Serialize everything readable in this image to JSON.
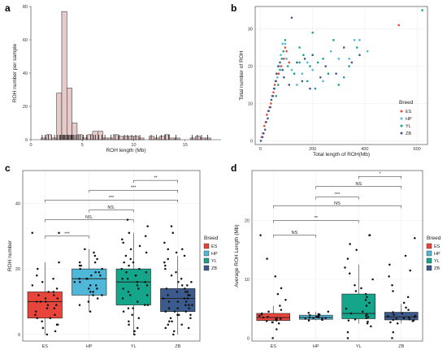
{
  "panel_labels": {
    "a": "a",
    "b": "b",
    "c": "c",
    "d": "d"
  },
  "colors": {
    "histogram_fill": "#e6c9c9",
    "ES": "#e8453a",
    "HP": "#4fb8d8",
    "YL": "#14a58a",
    "ZB": "#3c5a8c"
  },
  "chart_data": [
    {
      "id": "a",
      "type": "bar",
      "subtype": "histogram_with_rug",
      "xlabel": "ROH length (Mb)",
      "ylabel": "ROH number per sample",
      "xlim": [
        0,
        18.5
      ],
      "ylim": [
        0,
        80
      ],
      "xticks": [
        "0",
        "5",
        "10",
        "15"
      ],
      "xtick_values": [
        0,
        5,
        10,
        15
      ],
      "yticks": [
        "0",
        "20",
        "40",
        "60",
        "80"
      ],
      "ytick_values": [
        0,
        20,
        40,
        60,
        80
      ],
      "bin_width": 0.5,
      "bins": [
        {
          "x0": 1.0,
          "v": 1
        },
        {
          "x0": 1.5,
          "v": 3
        },
        {
          "x0": 2.0,
          "v": 1
        },
        {
          "x0": 2.5,
          "v": 28
        },
        {
          "x0": 3.0,
          "v": 77
        },
        {
          "x0": 3.5,
          "v": 31
        },
        {
          "x0": 4.0,
          "v": 10
        },
        {
          "x0": 4.5,
          "v": 3
        },
        {
          "x0": 5.0,
          "v": 1
        },
        {
          "x0": 5.5,
          "v": 3
        },
        {
          "x0": 6.0,
          "v": 5
        },
        {
          "x0": 6.5,
          "v": 5
        },
        {
          "x0": 7.0,
          "v": 1
        },
        {
          "x0": 7.5,
          "v": 1
        },
        {
          "x0": 8.0,
          "v": 3
        },
        {
          "x0": 8.5,
          "v": 2
        },
        {
          "x0": 9.0,
          "v": 2
        },
        {
          "x0": 9.5,
          "v": 2
        },
        {
          "x0": 10.0,
          "v": 2
        },
        {
          "x0": 10.5,
          "v": 1
        },
        {
          "x0": 11.5,
          "v": 2
        },
        {
          "x0": 12.0,
          "v": 1
        },
        {
          "x0": 12.5,
          "v": 2
        },
        {
          "x0": 13.0,
          "v": 3
        },
        {
          "x0": 13.5,
          "v": 1
        },
        {
          "x0": 14.0,
          "v": 1
        },
        {
          "x0": 15.5,
          "v": 1
        },
        {
          "x0": 16.0,
          "v": 2
        },
        {
          "x0": 16.5,
          "v": 1
        },
        {
          "x0": 17.0,
          "v": 1
        }
      ],
      "rug": [
        1.1,
        1.4,
        1.7,
        2.0,
        2.3,
        2.6,
        2.8,
        2.9,
        3.0,
        3.1,
        3.2,
        3.3,
        3.4,
        3.5,
        3.6,
        3.7,
        3.8,
        3.9,
        4.0,
        4.1,
        4.2,
        4.4,
        4.6,
        4.8,
        5.1,
        5.4,
        5.8,
        6.1,
        6.3,
        6.6,
        6.9,
        7.2,
        7.8,
        8.2,
        8.6,
        9.1,
        9.4,
        9.8,
        10.2,
        10.6,
        11.7,
        12.2,
        12.7,
        13.1,
        13.4,
        14.1,
        15.7,
        16.2,
        16.6,
        17.2
      ]
    },
    {
      "id": "b",
      "type": "scatter",
      "xlabel": "Total length of ROH(Mb)",
      "ylabel": "Total number of ROH",
      "xlim": [
        -20,
        640
      ],
      "ylim": [
        -1,
        36
      ],
      "xticks": [
        "0",
        "200",
        "400",
        "600"
      ],
      "xtick_values": [
        0,
        200,
        400,
        600
      ],
      "yticks": [
        "0",
        "10",
        "20",
        "30"
      ],
      "ytick_values": [
        0,
        10,
        20,
        30
      ],
      "legend": {
        "title": "Breed",
        "position": "right",
        "entries": [
          "ES",
          "HP",
          "YL",
          "ZB"
        ]
      },
      "series": [
        {
          "name": "ES",
          "points": [
            [
              5,
              1
            ],
            [
              10,
              2
            ],
            [
              15,
              4
            ],
            [
              20,
              5
            ],
            [
              25,
              7
            ],
            [
              30,
              8
            ],
            [
              35,
              9
            ],
            [
              40,
              10
            ],
            [
              45,
              12
            ],
            [
              50,
              13
            ],
            [
              55,
              15
            ],
            [
              60,
              16
            ],
            [
              70,
              18
            ],
            [
              80,
              20
            ],
            [
              90,
              22
            ],
            [
              95,
              25
            ],
            [
              530,
              31
            ],
            [
              100,
              24
            ],
            [
              110,
              21
            ]
          ]
        },
        {
          "name": "HP",
          "points": [
            [
              55,
              14
            ],
            [
              65,
              17
            ],
            [
              72,
              20
            ],
            [
              78,
              23
            ],
            [
              85,
              26
            ],
            [
              95,
              26
            ],
            [
              100,
              22
            ],
            [
              120,
              19
            ],
            [
              140,
              15
            ],
            [
              160,
              18
            ],
            [
              180,
              21
            ],
            [
              200,
              19
            ],
            [
              240,
              16
            ],
            [
              270,
              24
            ],
            [
              300,
              22
            ],
            [
              340,
              22
            ],
            [
              360,
              27
            ],
            [
              380,
              27
            ],
            [
              410,
              24
            ]
          ]
        },
        {
          "name": "YL",
          "points": [
            [
              60,
              12
            ],
            [
              68,
              15
            ],
            [
              75,
              19
            ],
            [
              82,
              22
            ],
            [
              88,
              24
            ],
            [
              95,
              27
            ],
            [
              105,
              20
            ],
            [
              130,
              18
            ],
            [
              150,
              21
            ],
            [
              165,
              23
            ],
            [
              190,
              20
            ],
            [
              200,
              29
            ],
            [
              210,
              14
            ],
            [
              220,
              21
            ],
            [
              240,
              22
            ],
            [
              260,
              18
            ],
            [
              280,
              27
            ],
            [
              300,
              15
            ],
            [
              320,
              17
            ],
            [
              340,
              20
            ],
            [
              370,
              25
            ],
            [
              620,
              35
            ],
            [
              150,
              25
            ],
            [
              180,
              16
            ]
          ]
        },
        {
          "name": "ZB",
          "points": [
            [
              2,
              0
            ],
            [
              8,
              1
            ],
            [
              12,
              2
            ],
            [
              18,
              3
            ],
            [
              22,
              5
            ],
            [
              28,
              6
            ],
            [
              32,
              8
            ],
            [
              38,
              9
            ],
            [
              42,
              11
            ],
            [
              48,
              12
            ],
            [
              52,
              14
            ],
            [
              58,
              16
            ],
            [
              62,
              18
            ],
            [
              68,
              20
            ],
            [
              75,
              21
            ],
            [
              85,
              19
            ],
            [
              90,
              17
            ],
            [
              110,
              15
            ],
            [
              120,
              33
            ],
            [
              140,
              21
            ],
            [
              160,
              16
            ],
            [
              170,
              22
            ],
            [
              190,
              14
            ],
            [
              200,
              23
            ],
            [
              230,
              17
            ],
            [
              250,
              20
            ],
            [
              290,
              18
            ],
            [
              320,
              25
            ],
            [
              350,
              21
            ],
            [
              380,
              23
            ]
          ]
        }
      ]
    },
    {
      "id": "c",
      "type": "box",
      "xlabel": "",
      "ylabel": "ROH number",
      "categories": [
        "ES",
        "HP",
        "YL",
        "ZB"
      ],
      "ylim": [
        -2,
        50
      ],
      "yticks": [
        "0",
        "20",
        "40"
      ],
      "ytick_values": [
        0,
        20,
        40
      ],
      "legend": {
        "title": "Breed",
        "position": "right",
        "entries": [
          "ES",
          "HP",
          "YL",
          "ZB"
        ]
      },
      "boxes": [
        {
          "name": "ES",
          "min": 0,
          "q1": 5,
          "median": 10,
          "q3": 13,
          "max": 22
        },
        {
          "name": "HP",
          "min": 7,
          "q1": 12,
          "median": 17,
          "q3": 20,
          "max": 26
        },
        {
          "name": "YL",
          "min": 0,
          "q1": 9,
          "median": 16,
          "q3": 20,
          "max": 31
        },
        {
          "name": "ZB",
          "min": 0,
          "q1": 7,
          "median": 11,
          "q3": 14,
          "max": 24
        }
      ],
      "points": {
        "ES": [
          0,
          1,
          2,
          3,
          3,
          4,
          5,
          5,
          6,
          6,
          7,
          8,
          8,
          9,
          9,
          10,
          10,
          10,
          11,
          11,
          12,
          12,
          13,
          13,
          14,
          15,
          16,
          17,
          18,
          20,
          22,
          31,
          31
        ],
        "HP": [
          7,
          9,
          10,
          11,
          12,
          12,
          13,
          13,
          14,
          14,
          15,
          15,
          16,
          16,
          17,
          17,
          17,
          18,
          18,
          19,
          19,
          20,
          20,
          21,
          21,
          22,
          22,
          23,
          24,
          25,
          26
        ],
        "YL": [
          0,
          1,
          2,
          3,
          4,
          5,
          6,
          7,
          8,
          8,
          9,
          9,
          10,
          11,
          12,
          12,
          13,
          14,
          14,
          15,
          15,
          16,
          16,
          17,
          17,
          18,
          18,
          19,
          19,
          20,
          20,
          21,
          22,
          22,
          23,
          24,
          25,
          26,
          27,
          28,
          29,
          30,
          31,
          35,
          33
        ],
        "ZB": [
          0,
          1,
          2,
          2,
          3,
          3,
          4,
          4,
          5,
          5,
          6,
          6,
          6,
          7,
          7,
          7,
          8,
          8,
          8,
          9,
          9,
          9,
          10,
          10,
          10,
          11,
          11,
          11,
          12,
          12,
          12,
          13,
          13,
          13,
          14,
          14,
          15,
          15,
          16,
          16,
          17,
          18,
          19,
          20,
          21,
          22,
          23,
          24,
          26,
          28,
          31,
          33,
          26,
          25
        ]
      },
      "significance": [
        {
          "from": "ES",
          "to": "HP",
          "label": "***",
          "y": 30
        },
        {
          "from": "ES",
          "to": "YL",
          "label": "NS.",
          "y": 35
        },
        {
          "from": "ES",
          "to": "ZB",
          "label": "***",
          "y": 41
        },
        {
          "from": "HP",
          "to": "YL",
          "label": "NS.",
          "y": 38
        },
        {
          "from": "HP",
          "to": "ZB",
          "label": "***",
          "y": 44
        },
        {
          "from": "YL",
          "to": "ZB",
          "label": "**",
          "y": 47
        }
      ]
    },
    {
      "id": "d",
      "type": "box",
      "xlabel": "",
      "ylabel": "Average ROH Length (Mb)",
      "categories": [
        "ES",
        "HP",
        "YL",
        "ZB"
      ],
      "ylim": [
        -0.5,
        28.5
      ],
      "yticks": [
        "0",
        "10",
        "20"
      ],
      "ytick_values": [
        0,
        10,
        20
      ],
      "legend": {
        "title": "Breed",
        "position": "right",
        "entries": [
          "ES",
          "HP",
          "YL",
          "ZB"
        ]
      },
      "boxes": [
        {
          "name": "ES",
          "min": 2.5,
          "q1": 3.0,
          "median": 3.5,
          "q3": 4.2,
          "max": 5.5
        },
        {
          "name": "HP",
          "min": 3.0,
          "q1": 3.2,
          "median": 3.5,
          "q3": 3.9,
          "max": 4.5
        },
        {
          "name": "YL",
          "min": 2.5,
          "q1": 3.3,
          "median": 4.2,
          "q3": 7.5,
          "max": 12.5
        },
        {
          "name": "ZB",
          "min": 2.5,
          "q1": 3.1,
          "median": 3.6,
          "q3": 4.4,
          "max": 5.8
        }
      ],
      "points": {
        "ES": [
          0,
          1.5,
          2.5,
          2.7,
          2.9,
          3.0,
          3.1,
          3.2,
          3.3,
          3.4,
          3.5,
          3.6,
          3.8,
          4.0,
          4.2,
          4.5,
          4.8,
          5.5,
          6.5,
          7.5,
          8.5,
          10.5,
          13.5,
          17.5
        ],
        "HP": [
          3.0,
          3.1,
          3.2,
          3.3,
          3.3,
          3.4,
          3.4,
          3.5,
          3.5,
          3.6,
          3.6,
          3.7,
          3.8,
          3.9,
          4.0,
          4.1,
          4.3,
          4.5
        ],
        "YL": [
          0,
          1.0,
          2.0,
          2.5,
          2.8,
          3.0,
          3.2,
          3.4,
          3.6,
          3.8,
          4.0,
          4.2,
          4.5,
          5.0,
          5.5,
          6.0,
          6.5,
          7.0,
          7.5,
          8.0,
          8.5,
          9.0,
          10,
          11,
          12,
          13.5,
          15,
          16,
          17.5,
          17.5
        ],
        "ZB": [
          0,
          1.0,
          2.5,
          2.7,
          2.9,
          3.0,
          3.1,
          3.2,
          3.3,
          3.4,
          3.5,
          3.6,
          3.7,
          3.8,
          4.0,
          4.2,
          4.4,
          4.8,
          5.2,
          6,
          7,
          8,
          9,
          10.5,
          11.5,
          12.5,
          14,
          17
        ]
      },
      "significance": [
        {
          "from": "ES",
          "to": "HP",
          "label": "NS",
          "y": 17.5
        },
        {
          "from": "ES",
          "to": "YL",
          "label": "**",
          "y": 20
        },
        {
          "from": "ES",
          "to": "ZB",
          "label": "NS",
          "y": 22.5
        },
        {
          "from": "HP",
          "to": "YL",
          "label": "***",
          "y": 24
        },
        {
          "from": "HP",
          "to": "ZB",
          "label": "NS",
          "y": 25.8
        },
        {
          "from": "YL",
          "to": "ZB",
          "label": "*",
          "y": 27.5
        }
      ]
    }
  ]
}
